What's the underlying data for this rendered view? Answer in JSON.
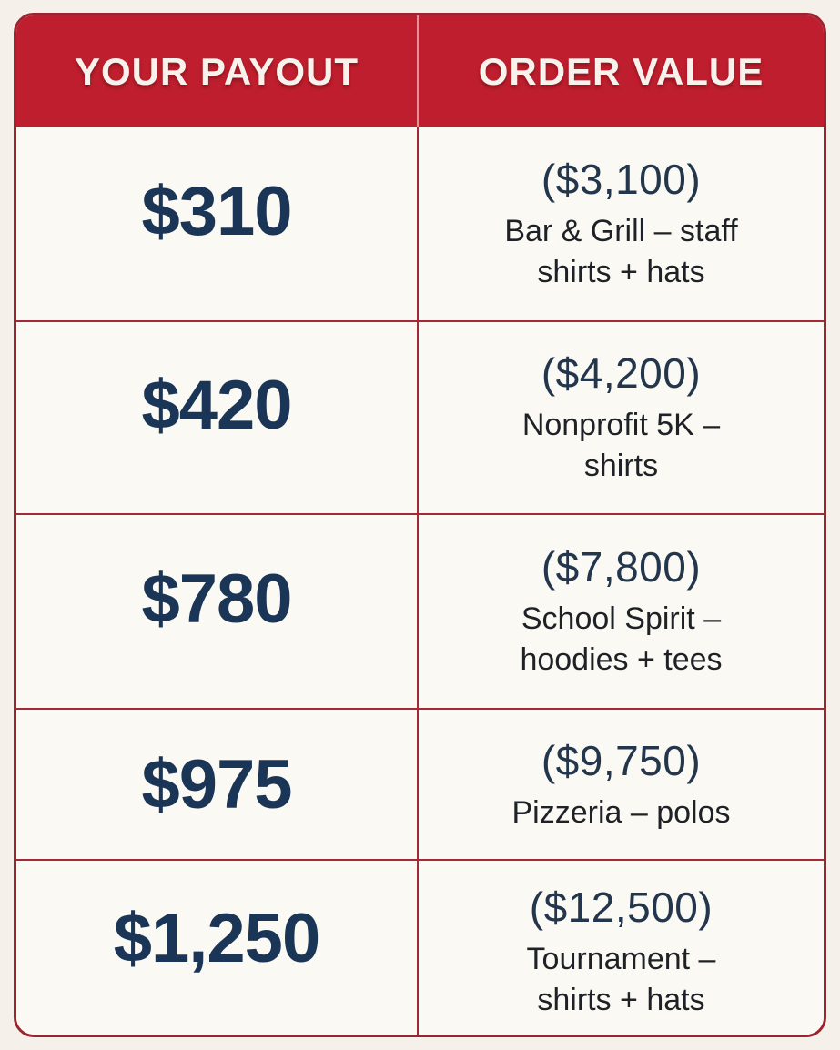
{
  "table": {
    "columns": [
      "YOUR PAYOUT",
      "ORDER VALUE"
    ],
    "rows": [
      {
        "payout": "$310",
        "order_value": "($3,100)",
        "description": "Bar & Grill – staff\nshirts + hats"
      },
      {
        "payout": "$420",
        "order_value": "($4,200)",
        "description": "Nonprofit 5K –\nshirts"
      },
      {
        "payout": "$780",
        "order_value": "($7,800)",
        "description": "School Spirit –\nhoodies + tees"
      },
      {
        "payout": "$975",
        "order_value": "($9,750)",
        "description": "Pizzeria – polos"
      },
      {
        "payout": "$1,250",
        "order_value": "($12,500)",
        "description": "Tournament –\nshirts + hats"
      }
    ]
  },
  "colors": {
    "header_background": "#be1e2d",
    "header_text": "#f8f2ec",
    "table_border": "#9a2430",
    "grid_line": "#a32936",
    "payout_text": "#1a3556",
    "order_value_text": "#23364c",
    "description_text": "#1e2126",
    "cell_background": "#fbf9f4",
    "page_background": "#f5f0e9"
  },
  "chart_data": {
    "type": "table",
    "title": "",
    "columns": [
      "YOUR PAYOUT",
      "ORDER VALUE"
    ],
    "rows": [
      {
        "payout_usd": 310,
        "order_value_usd": 3100,
        "order_label": "Bar & Grill – staff shirts + hats"
      },
      {
        "payout_usd": 420,
        "order_value_usd": 4200,
        "order_label": "Nonprofit 5K – shirts"
      },
      {
        "payout_usd": 780,
        "order_value_usd": 7800,
        "order_label": "School Spirit – hoodies + tees"
      },
      {
        "payout_usd": 975,
        "order_value_usd": 9750,
        "order_label": "Pizzeria – polos"
      },
      {
        "payout_usd": 1250,
        "order_value_usd": 12500,
        "order_label": "Tournament – shirts + hats"
      }
    ],
    "layout_hints": {
      "header_style": "red banner, white bold uppercase",
      "payout_column_style": "large bold navy",
      "grid": "on",
      "rounded_corners": true
    }
  }
}
